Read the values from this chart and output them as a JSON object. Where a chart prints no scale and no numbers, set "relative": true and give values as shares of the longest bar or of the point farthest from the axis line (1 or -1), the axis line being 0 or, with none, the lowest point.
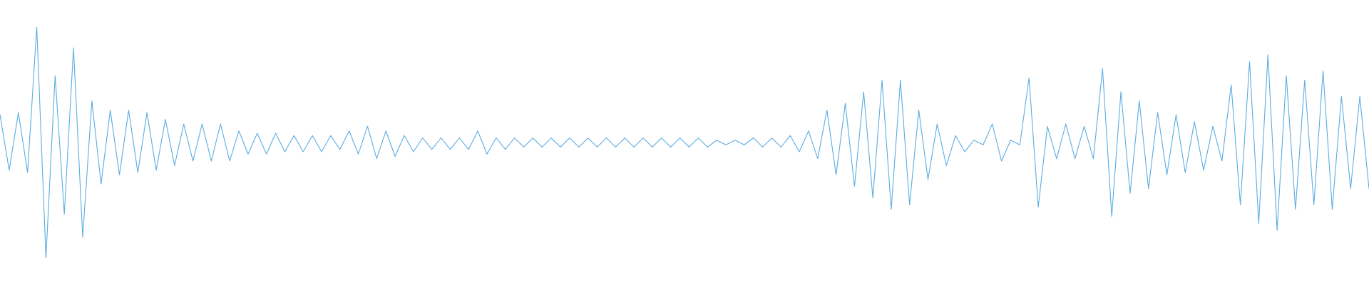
{
  "chart_data": {
    "type": "line",
    "relative": true,
    "color": "#5dade2",
    "marker": "none",
    "line_style": "solid",
    "grid": false,
    "legend": false,
    "categories": [
      null,
      null,
      null,
      null,
      null,
      null,
      null,
      null,
      null,
      null,
      null,
      null,
      null,
      null,
      null,
      null,
      null,
      null,
      null,
      null,
      null,
      null,
      null,
      null,
      null,
      null,
      null,
      null,
      null,
      null,
      null,
      null,
      null,
      null,
      null,
      null,
      null,
      null,
      null,
      null,
      null,
      null,
      null,
      null,
      null,
      null,
      null,
      null,
      null,
      null,
      null,
      null,
      null,
      null,
      null,
      null,
      null,
      null,
      null,
      null,
      null,
      null,
      null,
      null,
      null,
      null,
      null,
      null,
      null,
      null,
      null,
      null,
      null,
      null,
      null,
      null,
      null,
      null,
      null,
      null,
      null,
      null,
      null,
      null,
      null,
      null,
      null,
      null,
      null,
      null,
      null,
      null,
      null,
      null,
      null,
      null,
      null,
      null,
      null,
      null,
      null,
      null,
      null,
      null,
      null,
      null,
      null,
      null,
      null,
      null,
      null,
      null,
      null,
      null,
      null,
      null,
      null,
      null,
      null,
      null,
      null,
      null,
      null,
      null,
      null,
      null,
      null,
      null,
      null,
      null,
      null,
      null,
      null,
      null,
      null,
      null,
      null,
      null,
      null,
      null,
      null,
      null,
      null,
      null,
      null,
      null,
      null,
      null,
      null,
      null
    ],
    "values": [
      0.62,
      0.38,
      0.63,
      0.37,
      1,
      0,
      0.79,
      0.19,
      0.91,
      0.09,
      0.68,
      0.32,
      0.64,
      0.36,
      0.64,
      0.37,
      0.63,
      0.38,
      0.6,
      0.4,
      0.58,
      0.42,
      0.58,
      0.42,
      0.58,
      0.42,
      0.55,
      0.45,
      0.54,
      0.45,
      0.54,
      0.46,
      0.53,
      0.46,
      0.53,
      0.46,
      0.53,
      0.47,
      0.55,
      0.45,
      0.57,
      0.43,
      0.55,
      0.44,
      0.53,
      0.46,
      0.52,
      0.47,
      0.52,
      0.47,
      0.52,
      0.47,
      0.55,
      0.45,
      0.52,
      0.47,
      0.52,
      0.48,
      0.52,
      0.48,
      0.52,
      0.48,
      0.52,
      0.48,
      0.52,
      0.48,
      0.52,
      0.48,
      0.52,
      0.48,
      0.52,
      0.48,
      0.52,
      0.48,
      0.52,
      0.48,
      0.52,
      0.48,
      0.51,
      0.49,
      0.51,
      0.49,
      0.52,
      0.48,
      0.52,
      0.48,
      0.53,
      0.46,
      0.55,
      0.43,
      0.64,
      0.36,
      0.67,
      0.31,
      0.72,
      0.26,
      0.77,
      0.21,
      0.77,
      0.23,
      0.64,
      0.34,
      0.58,
      0.4,
      0.53,
      0.46,
      0.51,
      0.49,
      0.58,
      0.42,
      0.51,
      0.49,
      0.78,
      0.22,
      0.57,
      0.43,
      0.58,
      0.43,
      0.57,
      0.43,
      0.82,
      0.18,
      0.72,
      0.28,
      0.68,
      0.3,
      0.63,
      0.36,
      0.62,
      0.37,
      0.59,
      0.38,
      0.57,
      0.42,
      0.75,
      0.23,
      0.85,
      0.15,
      0.88,
      0.12,
      0.79,
      0.21,
      0.77,
      0.23,
      0.81,
      0.21,
      0.7,
      0.3,
      0.7,
      0.3
    ]
  }
}
